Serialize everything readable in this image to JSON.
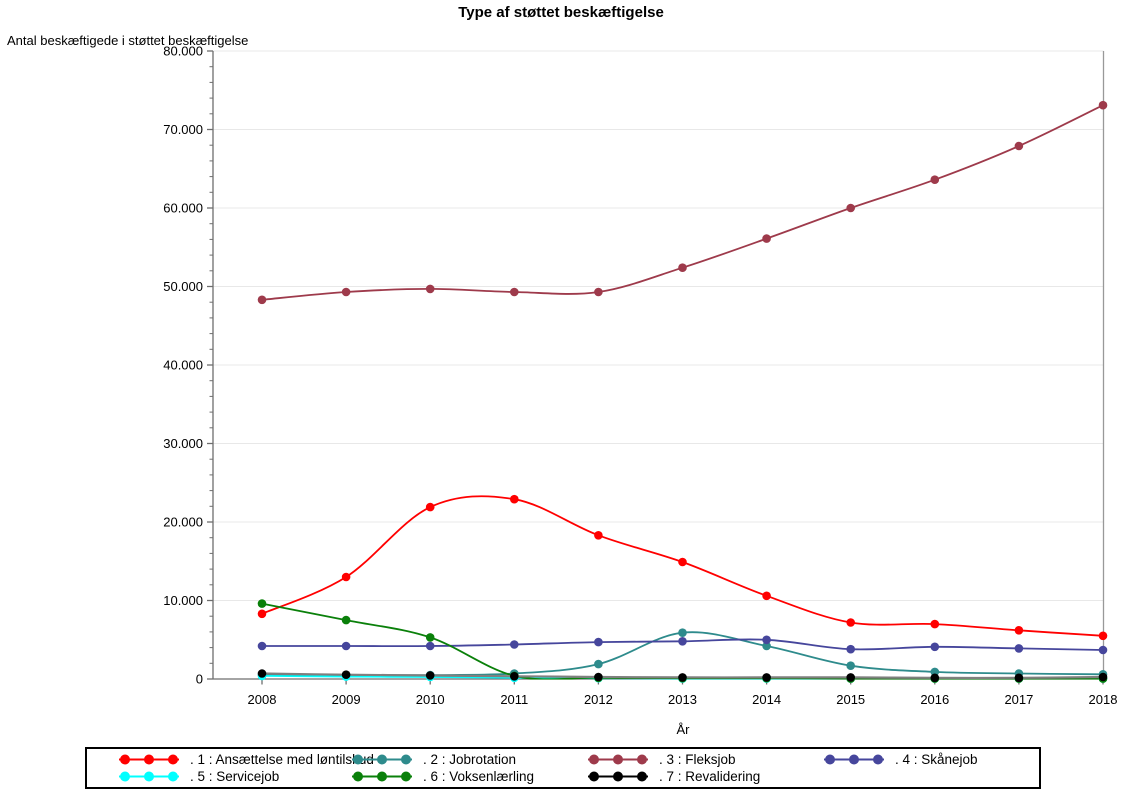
{
  "chart": {
    "title": "Type af støttet beskæftigelse",
    "y_axis_title": "Antal beskæftigede i støttet beskæftigelse",
    "x_axis_title": "År"
  },
  "chart_data": {
    "type": "line",
    "title": "Type af støttet beskæftigelse",
    "xlabel": "År",
    "ylabel": "Antal beskæftigede i støttet beskæftigelse",
    "x": [
      2008,
      2009,
      2010,
      2011,
      2012,
      2013,
      2014,
      2015,
      2016,
      2017,
      2018
    ],
    "x_tick_labels": [
      "2008",
      "2009",
      "2010",
      "2011",
      "2012",
      "2013",
      "2014",
      "2015",
      "2016",
      "2017",
      "2018"
    ],
    "ylim": [
      0,
      80000
    ],
    "ytick_values": [
      0,
      10000,
      20000,
      30000,
      40000,
      50000,
      60000,
      70000,
      80000
    ],
    "ytick_labels": [
      "0",
      "10.000",
      "20.000",
      "30.000",
      "40.000",
      "50.000",
      "60.000",
      "70.000",
      "80.000"
    ],
    "minor_tick_step": 2000,
    "grid": "horizontal-only",
    "legend_position": "bottom",
    "interpolation": "smooth-spline",
    "colors": {
      "gridline": "#E8E8E8",
      "axis": "#6E6E6E",
      "frame_right": "#999999",
      "text": "#000000"
    },
    "series": [
      {
        "name": "ansaettelse-med-loentilskud",
        "label": ". 1 : Ansættelse med løntilskud",
        "color": "#FF0000",
        "values": [
          8300,
          13000,
          21900,
          22900,
          18300,
          14900,
          10600,
          7200,
          7000,
          6200,
          5500
        ]
      },
      {
        "name": "jobrotation",
        "label": ". 2 : Jobrotation",
        "color": "#2E8B8C",
        "values": [
          500,
          500,
          500,
          700,
          1900,
          5900,
          4200,
          1700,
          900,
          700,
          600
        ]
      },
      {
        "name": "fleksjob",
        "label": ". 3 : Fleksjob",
        "color": "#9E3A4B",
        "values": [
          48300,
          49300,
          49700,
          49300,
          49300,
          52400,
          56100,
          60000,
          63600,
          67900,
          73100
        ]
      },
      {
        "name": "skaanejob",
        "label": ". 4 : Skånejob",
        "color": "#46469C",
        "values": [
          4200,
          4200,
          4200,
          4400,
          4700,
          4800,
          5000,
          3800,
          4100,
          3900,
          3700
        ]
      },
      {
        "name": "servicejob",
        "label": ". 5 : Servicejob",
        "color": "#00FFFF",
        "values": [
          400,
          300,
          250,
          150,
          100,
          50,
          50,
          50,
          50,
          50,
          50
        ]
      },
      {
        "name": "voksenlaerling",
        "label": ". 6 : Voksenlærling",
        "color": "#0A800A",
        "values": [
          9600,
          7500,
          5300,
          400,
          150,
          100,
          100,
          50,
          50,
          50,
          50
        ]
      },
      {
        "name": "revalidering",
        "label": ". 7 : Revalidering",
        "color": "#000000",
        "line_color": "#7F7F7F",
        "values": [
          700,
          550,
          450,
          350,
          250,
          200,
          200,
          200,
          150,
          150,
          250
        ]
      }
    ]
  }
}
